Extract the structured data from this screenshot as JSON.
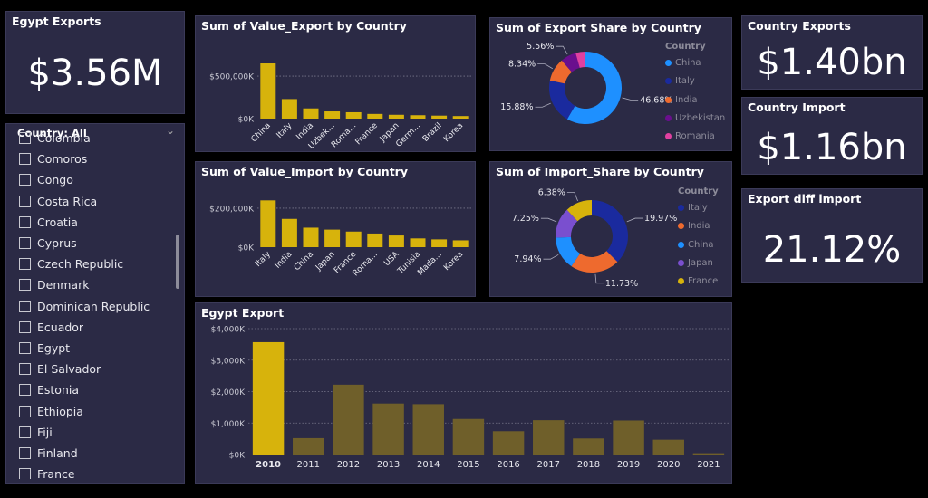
{
  "egypt_exports": {
    "title": "Egypt Exports",
    "value": "$3.56M"
  },
  "country_exports": {
    "title": "Country Exports",
    "value": "$1.40bn"
  },
  "country_import": {
    "title": "Country Import",
    "value": "$1.16bn"
  },
  "export_diff": {
    "title": "Export diff import",
    "value": "21.12%"
  },
  "slicer": {
    "header": "Country: All",
    "items": [
      "Colombia",
      "Comoros",
      "Congo",
      "Costa Rica",
      "Croatia",
      "Cyprus",
      "Czech Republic",
      "Denmark",
      "Dominican Republic",
      "Ecuador",
      "Egypt",
      "El Salvador",
      "Estonia",
      "Ethiopia",
      "Fiji",
      "Finland",
      "France"
    ]
  },
  "colors": {
    "bar": "#d7b30c",
    "bar_dim": "#6f5f2a",
    "panel": "#2b2a45",
    "china": "#1e90ff",
    "italy": "#1a2a9e",
    "india": "#ee6a2e",
    "uzbekistan": "#6a0f8e",
    "romania": "#e040a0",
    "japan": "#7a4fcf",
    "france": "#d7b30c"
  },
  "chart_data": [
    {
      "id": "export_by_country",
      "type": "bar",
      "title": "Sum of Value_Export by Country",
      "categories": [
        "China",
        "Italy",
        "India",
        "Uzbek...",
        "Roma...",
        "France",
        "Japan",
        "Germ...",
        "Brazil",
        "Korea"
      ],
      "values": [
        650000,
        230000,
        120000,
        85000,
        75000,
        55000,
        45000,
        40000,
        35000,
        30000
      ],
      "ylim": [
        0,
        650000
      ],
      "yticks": [
        {
          "v": 0,
          "label": "$0K"
        },
        {
          "v": 500000,
          "label": "$500,000K"
        }
      ],
      "grid": true
    },
    {
      "id": "import_by_country",
      "type": "bar",
      "title": "Sum of Value_Import by Country",
      "categories": [
        "Italy",
        "India",
        "China",
        "Japan",
        "France",
        "Roma...",
        "USA",
        "Tunisia",
        "Mada...",
        "Korea"
      ],
      "values": [
        240000,
        145000,
        100000,
        90000,
        80000,
        70000,
        60000,
        45000,
        40000,
        35000
      ],
      "ylim": [
        0,
        260000
      ],
      "yticks": [
        {
          "v": 0,
          "label": "$0K"
        },
        {
          "v": 200000,
          "label": "$200,000K"
        }
      ],
      "grid": true
    },
    {
      "id": "export_share",
      "type": "pie",
      "title": "Sum of Export Share by Country",
      "legend_title": "Country",
      "labels": [
        "China",
        "Italy",
        "India",
        "Uzbekistan",
        "Romania"
      ],
      "values": [
        46.68,
        15.88,
        8.34,
        5.56,
        3.5
      ],
      "value_labels": [
        "46.68%",
        "15.88%",
        "8.34%",
        "5.56%",
        ""
      ],
      "colors": [
        "#1e90ff",
        "#1a2a9e",
        "#ee6a2e",
        "#6a0f8e",
        "#e040a0"
      ]
    },
    {
      "id": "import_share",
      "type": "pie",
      "title": "Sum of Import_Share by Country",
      "legend_title": "Country",
      "labels": [
        "Italy",
        "India",
        "China",
        "Japan",
        "France"
      ],
      "values": [
        19.97,
        11.73,
        7.94,
        7.25,
        6.38
      ],
      "value_labels": [
        "19.97%",
        "11.73%",
        "7.94%",
        "7.25%",
        "6.38%"
      ],
      "colors": [
        "#1a2a9e",
        "#ee6a2e",
        "#1e90ff",
        "#7a4fcf",
        "#d7b30c"
      ]
    },
    {
      "id": "egypt_export",
      "type": "bar",
      "title": "Egypt Export",
      "categories": [
        "2010",
        "2011",
        "2012",
        "2013",
        "2014",
        "2015",
        "2016",
        "2017",
        "2018",
        "2019",
        "2020",
        "2021"
      ],
      "values": [
        3570,
        520,
        2220,
        1620,
        1600,
        1130,
        740,
        1090,
        510,
        1080,
        470,
        40
      ],
      "highlight_index": 0,
      "ylim": [
        0,
        4000
      ],
      "yticks": [
        {
          "v": 0,
          "label": "$0K"
        },
        {
          "v": 1000,
          "label": "$1,000K"
        },
        {
          "v": 2000,
          "label": "$2,000K"
        },
        {
          "v": 3000,
          "label": "$3,000K"
        },
        {
          "v": 4000,
          "label": "$4,000K"
        }
      ],
      "grid": true
    }
  ]
}
